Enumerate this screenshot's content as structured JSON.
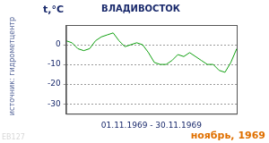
{
  "chart_data": {
    "type": "line",
    "title": "ВЛАДИВОСТОК",
    "ylabel": "t,°C",
    "xlabel": "01.11.1969 - 30.11.1969",
    "annotations": [
      "источник: гидрометцентр",
      "ноябрь, 1969",
      "EB127"
    ],
    "categories": [
      null,
      null,
      null,
      null,
      null,
      null,
      null,
      null,
      null,
      null,
      null,
      null,
      null,
      null,
      null,
      null,
      null,
      null,
      null,
      null,
      null,
      null,
      null,
      null,
      null,
      null,
      null,
      null,
      null,
      null
    ],
    "values": [
      2,
      1,
      -2,
      -3,
      -2,
      2,
      4,
      5,
      6,
      2,
      -1,
      0,
      1,
      0,
      -4,
      -9,
      -10,
      -10,
      -8,
      -5,
      -6,
      -4,
      -6,
      -8,
      -10,
      -10,
      -13,
      -14,
      -9,
      -2
    ],
    "color": "#10a010",
    "ylim": [
      -35,
      10
    ],
    "yticks": [
      -30,
      -20,
      -10,
      0
    ],
    "grid": true,
    "tick_labels": "y"
  }
}
